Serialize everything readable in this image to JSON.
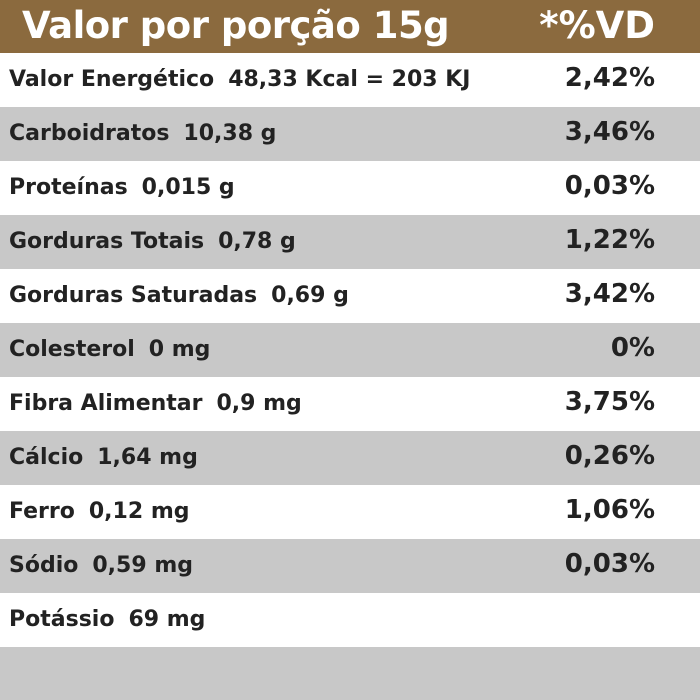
{
  "header": {
    "title": "Valor por porção 15g",
    "vd": "*%VD"
  },
  "table": {
    "rows": [
      [
        "Valor Energético",
        "48,33 Kcal = 203 KJ",
        "2,42%"
      ],
      [
        "Carboidratos",
        "10,38 g",
        "3,46%"
      ],
      [
        "Proteínas",
        "0,015 g",
        "0,03%"
      ],
      [
        "Gorduras Totais",
        "0,78 g",
        "1,22%"
      ],
      [
        "Gorduras Saturadas",
        "0,69 g",
        "3,42%"
      ],
      [
        "Colesterol",
        "0 mg",
        "0%"
      ],
      [
        "Fibra Alimentar",
        "0,9 mg",
        "3,75%"
      ],
      [
        "Cálcio",
        "1,64 mg",
        "0,26%"
      ],
      [
        "Ferro",
        "0,12 mg",
        "1,06%"
      ],
      [
        "Sódio",
        "0,59 mg",
        "0,03%"
      ],
      [
        "Potássio",
        "69 mg"
      ]
    ]
  }
}
